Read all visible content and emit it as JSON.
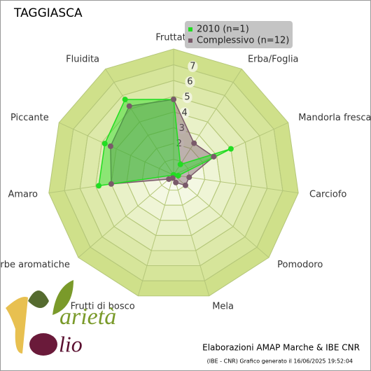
{
  "chart_data": {
    "type": "radar",
    "title": "TAGGIASCA",
    "categories": [
      "Fruttato",
      "Erba/Foglia",
      "Mandorla fresca",
      "Carciofo",
      "Pomodoro",
      "Mela",
      "Frutti di bosco",
      "Erbe aromatiche",
      "Amaro",
      "Piccante",
      "Fluidita"
    ],
    "series": [
      {
        "name": "2010 (n=1)",
        "color": "#22dd22",
        "values": [
          4.8,
          0.8,
          4.0,
          0.3,
          0,
          0,
          0,
          0,
          4.8,
          4.8,
          5.7
        ]
      },
      {
        "name": "Complessivo (n=12)",
        "color": "#7a5a6a",
        "values": [
          4.8,
          2.4,
          2.8,
          1.0,
          1.0,
          0.5,
          0.2,
          0.4,
          4.0,
          4.4,
          5.2
        ]
      }
    ],
    "rlim": [
      0,
      8
    ],
    "rticks": [
      2,
      3,
      4,
      5,
      6,
      7
    ]
  },
  "footer": {
    "credit": "Elaborazioni AMAP Marche & IBE CNR",
    "generated": "(IBE - CNR) Grafico generato il 16/06/2025 19:52:04"
  },
  "logo": {
    "word1": "arietà",
    "word2": "lio"
  }
}
